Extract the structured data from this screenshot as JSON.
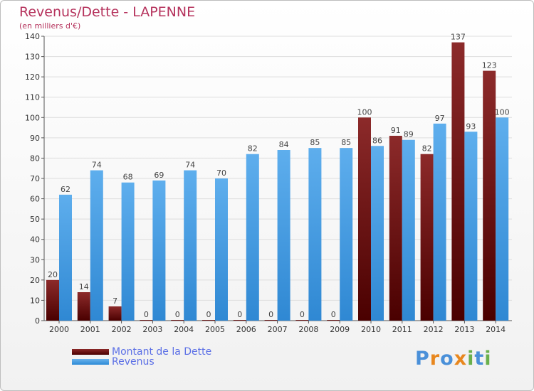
{
  "title": "Revenus/Dette - LAPENNE",
  "subtitle": "(en milliers d'€)",
  "chart_data": {
    "type": "bar",
    "title": "Revenus/Dette - LAPENNE",
    "subtitle": "(en milliers d'€)",
    "categories": [
      "2000",
      "2001",
      "2002",
      "2003",
      "2004",
      "2005",
      "2006",
      "2007",
      "2008",
      "2009",
      "2010",
      "2011",
      "2012",
      "2013",
      "2014"
    ],
    "series": [
      {
        "name": "Montant de la Dette",
        "values": [
          20,
          14,
          7,
          0,
          0,
          0,
          0,
          0,
          0,
          0,
          100,
          91,
          82,
          137,
          123
        ],
        "color": "#7a1c1c"
      },
      {
        "name": "Revenus",
        "values": [
          62,
          74,
          68,
          69,
          74,
          70,
          82,
          84,
          85,
          85,
          86,
          89,
          97,
          93,
          100
        ],
        "color": "#4ea3e6"
      }
    ],
    "ylim": [
      0,
      140
    ],
    "yticks": [
      "0",
      "10",
      "20",
      "30",
      "40",
      "50",
      "60",
      "70",
      "80",
      "90",
      "100",
      "110",
      "120",
      "130",
      "140"
    ],
    "grid": true,
    "legend": "bottom-left"
  },
  "legend": {
    "debt_label": "Montant de la Dette",
    "revenue_label": "Revenus"
  },
  "logo": {
    "letters": [
      "P",
      "r",
      "o",
      "x",
      "i",
      "t",
      "i"
    ],
    "colors": [
      "#4a90d9",
      "#e8871e",
      "#4a90d9",
      "#e8871e",
      "#6ab04c",
      "#4a90d9",
      "#6ab04c"
    ]
  }
}
